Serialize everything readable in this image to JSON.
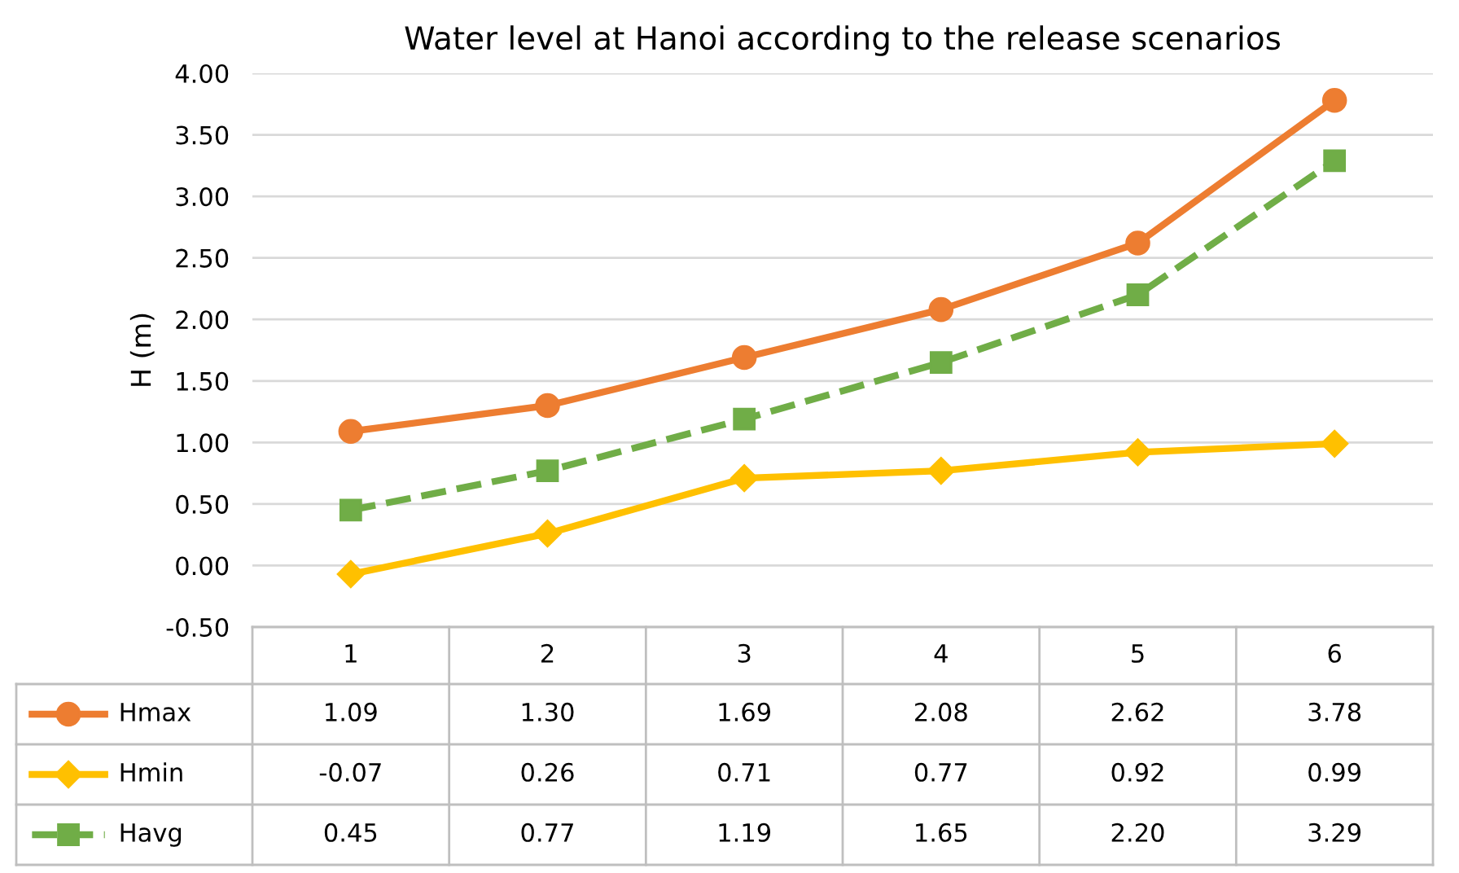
{
  "chart_data": {
    "type": "line",
    "title": "Water level at Hanoi according to the release scenarios",
    "ylabel": "H (m)",
    "categories": [
      "1",
      "2",
      "3",
      "4",
      "5",
      "6"
    ],
    "ylim": [
      -0.5,
      4.0
    ],
    "yticks": [
      {
        "value": -0.5,
        "label": "-0.50"
      },
      {
        "value": 0,
        "label": "0.00"
      },
      {
        "value": 0.5,
        "label": "0.50"
      },
      {
        "value": 1.0,
        "label": "1.00"
      },
      {
        "value": 1.5,
        "label": "1.50"
      },
      {
        "value": 2.0,
        "label": "2.00"
      },
      {
        "value": 2.5,
        "label": "2.50"
      },
      {
        "value": 3.0,
        "label": "3.00"
      },
      {
        "value": 3.5,
        "label": "3.50"
      },
      {
        "value": 4.0,
        "label": "4.00"
      }
    ],
    "grid": "y",
    "legend": "bottom",
    "series": [
      {
        "name": "Hmax",
        "color": "#ed7d31",
        "marker": "circle",
        "line_style": "solid",
        "values": [
          1.09,
          1.3,
          1.69,
          2.08,
          2.62,
          3.78
        ],
        "value_labels": [
          "1.09",
          "1.30",
          "1.69",
          "2.08",
          "2.62",
          "3.78"
        ]
      },
      {
        "name": "Hmin",
        "color": "#ffc000",
        "marker": "diamond",
        "line_style": "solid",
        "values": [
          -0.07,
          0.26,
          0.71,
          0.77,
          0.92,
          0.99
        ],
        "value_labels": [
          "-0.07",
          "0.26",
          "0.71",
          "0.77",
          "0.92",
          "0.99"
        ]
      },
      {
        "name": "Havg",
        "color": "#70ad47",
        "marker": "square",
        "line_style": "dashed",
        "values": [
          0.45,
          0.77,
          1.19,
          1.65,
          2.2,
          3.29
        ],
        "value_labels": [
          "0.45",
          "0.77",
          "1.19",
          "1.65",
          "2.20",
          "3.29"
        ]
      }
    ]
  }
}
